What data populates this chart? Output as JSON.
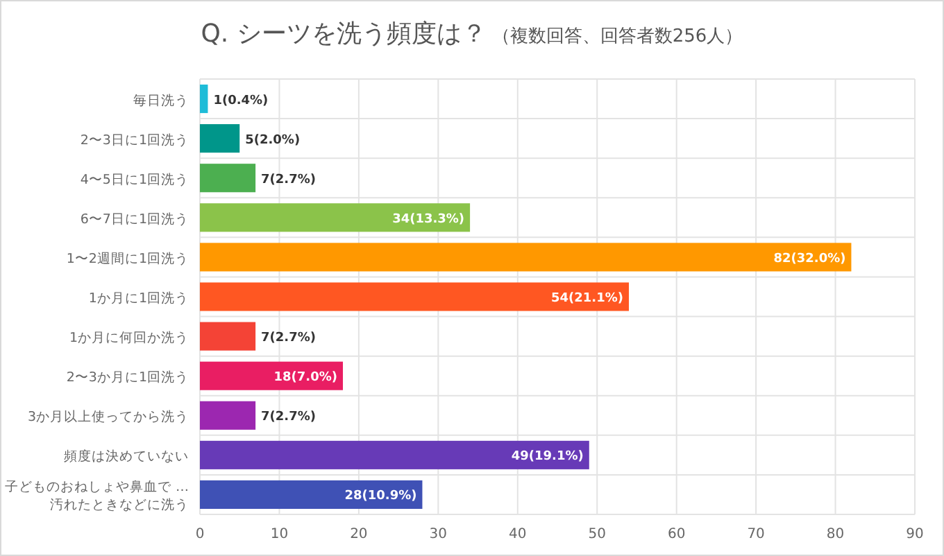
{
  "chart_data": {
    "type": "bar",
    "orientation": "horizontal",
    "title": "Q. シーツを洗う頻度は？",
    "subtitle": "（複数回答、回答者数256人）",
    "categories": [
      "毎日洗う",
      "2〜3日に1回洗う",
      "4〜5日に1回洗う",
      "6〜7日に1回洗う",
      "1〜2週間に1回洗う",
      "1か月に1回洗う",
      "1か月に何回か洗う",
      "2〜3か月に1回洗う",
      "3か月以上使ってから洗う",
      "頻度は決めていない",
      "子どものおねしょや鼻血で …\n汚れたときなどに洗う"
    ],
    "values": [
      1,
      5,
      7,
      34,
      82,
      54,
      7,
      18,
      7,
      49,
      28
    ],
    "value_labels": [
      "1(0.4%)",
      "5(2.0%)",
      "7(2.7%)",
      "34(13.3%)",
      "82(32.0%)",
      "54(21.1%)",
      "7(2.7%)",
      "18(7.0%)",
      "7(2.7%)",
      "49(19.1%)",
      "28(10.9%)"
    ],
    "colors": [
      "#1ebcd8",
      "#00968a",
      "#4caf50",
      "#8bc34a",
      "#ff9800",
      "#ff5722",
      "#f44336",
      "#e91e63",
      "#9c27b0",
      "#673ab7",
      "#3f51b5"
    ],
    "xlim": [
      0,
      90
    ],
    "xticks": [
      0,
      10,
      20,
      30,
      40,
      50,
      60,
      70,
      80,
      90
    ],
    "grid": true
  }
}
